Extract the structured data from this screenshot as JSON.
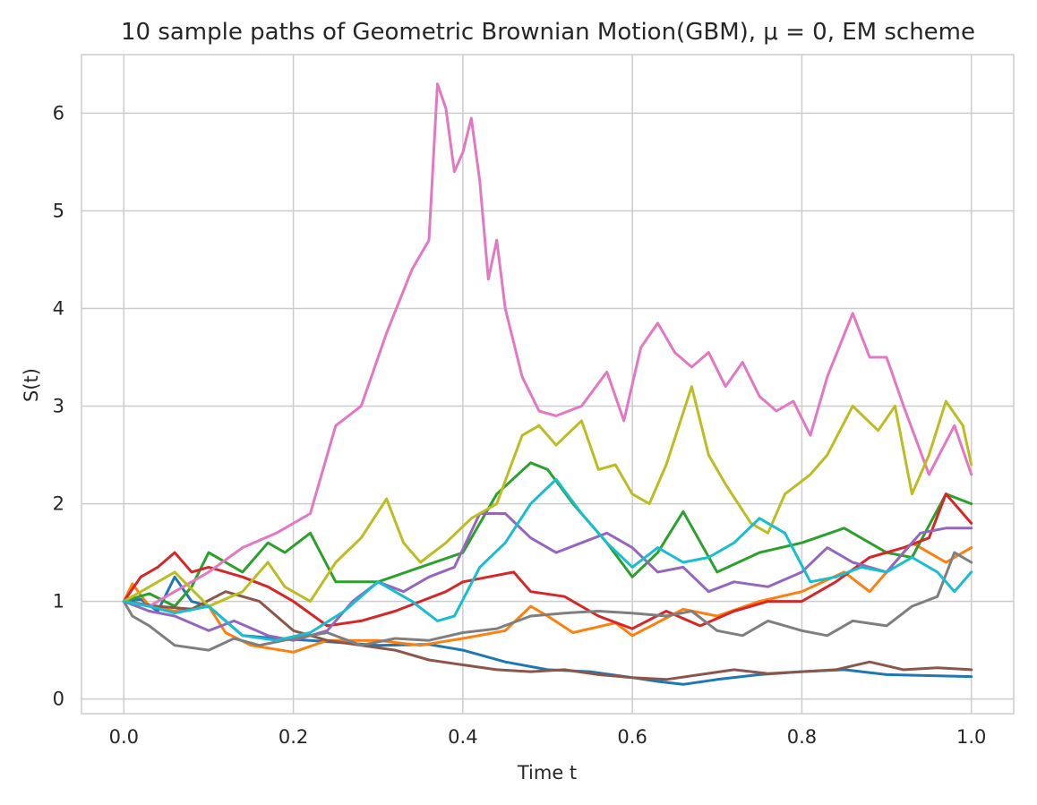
{
  "chart_data": {
    "type": "line",
    "title": "10 sample paths of Geometric Brownian Motion(GBM), μ = 0, EM scheme",
    "xlabel": "Time t",
    "ylabel": "S(t)",
    "xlim": [
      -0.05,
      1.05
    ],
    "ylim": [
      -0.15,
      6.6
    ],
    "grid": true,
    "legend": "none",
    "x_ticks": [
      0.0,
      0.2,
      0.4,
      0.6,
      0.8,
      1.0
    ],
    "x_tick_labels": [
      "0.0",
      "0.2",
      "0.4",
      "0.6",
      "0.8",
      "1.0"
    ],
    "y_ticks": [
      0,
      1,
      2,
      3,
      4,
      5,
      6
    ],
    "y_tick_labels": [
      "0",
      "1",
      "2",
      "3",
      "4",
      "5",
      "6"
    ],
    "series": [
      {
        "color": "#1f77b4",
        "x": [
          0,
          0.02,
          0.04,
          0.06,
          0.08,
          0.1,
          0.14,
          0.18,
          0.22,
          0.3,
          0.36,
          0.4,
          0.45,
          0.5,
          0.55,
          0.6,
          0.63,
          0.66,
          0.7,
          0.75,
          0.8,
          0.85,
          0.9,
          0.95,
          1.0
        ],
        "y": [
          1.0,
          1.02,
          0.9,
          1.25,
          1.0,
          0.95,
          0.65,
          0.62,
          0.6,
          0.55,
          0.56,
          0.5,
          0.38,
          0.3,
          0.28,
          0.22,
          0.18,
          0.15,
          0.2,
          0.25,
          0.28,
          0.3,
          0.25,
          0.24,
          0.23
        ]
      },
      {
        "color": "#ff7f0e",
        "x": [
          0,
          0.01,
          0.03,
          0.06,
          0.1,
          0.12,
          0.15,
          0.2,
          0.24,
          0.3,
          0.35,
          0.4,
          0.45,
          0.48,
          0.5,
          0.53,
          0.58,
          0.6,
          0.66,
          0.7,
          0.75,
          0.8,
          0.85,
          0.88,
          0.93,
          0.97,
          1.0
        ],
        "y": [
          1.0,
          1.18,
          0.95,
          0.9,
          0.95,
          0.68,
          0.55,
          0.48,
          0.6,
          0.6,
          0.55,
          0.62,
          0.7,
          0.95,
          0.85,
          0.68,
          0.78,
          0.65,
          0.92,
          0.85,
          1.0,
          1.1,
          1.3,
          1.1,
          1.6,
          1.4,
          1.55
        ]
      },
      {
        "color": "#2ca02c",
        "x": [
          0,
          0.03,
          0.06,
          0.08,
          0.1,
          0.14,
          0.17,
          0.19,
          0.22,
          0.25,
          0.3,
          0.35,
          0.4,
          0.44,
          0.48,
          0.5,
          0.53,
          0.57,
          0.6,
          0.63,
          0.66,
          0.7,
          0.75,
          0.8,
          0.85,
          0.9,
          0.93,
          0.97,
          1.0
        ],
        "y": [
          1.0,
          1.08,
          0.95,
          1.15,
          1.5,
          1.3,
          1.6,
          1.5,
          1.7,
          1.2,
          1.2,
          1.35,
          1.5,
          2.1,
          2.42,
          2.35,
          2.0,
          1.6,
          1.25,
          1.5,
          1.92,
          1.3,
          1.5,
          1.6,
          1.75,
          1.5,
          1.45,
          2.1,
          2.0
        ]
      },
      {
        "color": "#d62728",
        "x": [
          0,
          0.02,
          0.04,
          0.06,
          0.08,
          0.1,
          0.14,
          0.17,
          0.2,
          0.24,
          0.28,
          0.32,
          0.35,
          0.38,
          0.4,
          0.43,
          0.46,
          0.48,
          0.52,
          0.56,
          0.6,
          0.64,
          0.68,
          0.72,
          0.76,
          0.8,
          0.84,
          0.88,
          0.92,
          0.95,
          0.97,
          1.0
        ],
        "y": [
          1.0,
          1.25,
          1.35,
          1.5,
          1.3,
          1.35,
          1.25,
          1.15,
          1.0,
          0.75,
          0.8,
          0.9,
          1.0,
          1.1,
          1.2,
          1.25,
          1.3,
          1.1,
          1.05,
          0.85,
          0.72,
          0.9,
          0.75,
          0.9,
          1.0,
          1.0,
          1.2,
          1.45,
          1.55,
          1.65,
          2.1,
          1.8
        ]
      },
      {
        "color": "#9467bd",
        "x": [
          0,
          0.03,
          0.06,
          0.1,
          0.13,
          0.17,
          0.2,
          0.24,
          0.27,
          0.3,
          0.33,
          0.36,
          0.39,
          0.42,
          0.45,
          0.48,
          0.51,
          0.54,
          0.57,
          0.6,
          0.63,
          0.66,
          0.69,
          0.72,
          0.76,
          0.8,
          0.83,
          0.86,
          0.9,
          0.94,
          0.97,
          1.0
        ],
        "y": [
          1.0,
          0.9,
          0.85,
          0.7,
          0.8,
          0.65,
          0.6,
          0.7,
          1.0,
          1.2,
          1.1,
          1.25,
          1.35,
          1.9,
          1.9,
          1.65,
          1.5,
          1.6,
          1.7,
          1.55,
          1.3,
          1.35,
          1.1,
          1.2,
          1.15,
          1.3,
          1.55,
          1.4,
          1.3,
          1.7,
          1.75,
          1.75
        ]
      },
      {
        "color": "#8c564b",
        "x": [
          0,
          0.04,
          0.08,
          0.12,
          0.16,
          0.2,
          0.24,
          0.28,
          0.32,
          0.36,
          0.4,
          0.44,
          0.48,
          0.52,
          0.56,
          0.6,
          0.64,
          0.68,
          0.72,
          0.76,
          0.8,
          0.84,
          0.88,
          0.92,
          0.96,
          1.0
        ],
        "y": [
          1.0,
          0.95,
          0.92,
          1.1,
          1.0,
          0.7,
          0.6,
          0.55,
          0.5,
          0.4,
          0.35,
          0.3,
          0.28,
          0.3,
          0.25,
          0.22,
          0.2,
          0.25,
          0.3,
          0.26,
          0.28,
          0.3,
          0.38,
          0.3,
          0.32,
          0.3
        ]
      },
      {
        "color": "#e377c2",
        "x": [
          0,
          0.03,
          0.06,
          0.1,
          0.14,
          0.18,
          0.22,
          0.25,
          0.28,
          0.31,
          0.34,
          0.36,
          0.37,
          0.38,
          0.39,
          0.4,
          0.41,
          0.42,
          0.43,
          0.44,
          0.45,
          0.47,
          0.49,
          0.51,
          0.54,
          0.57,
          0.59,
          0.61,
          0.63,
          0.65,
          0.67,
          0.69,
          0.71,
          0.73,
          0.75,
          0.77,
          0.79,
          0.81,
          0.83,
          0.86,
          0.88,
          0.9,
          0.92,
          0.95,
          0.98,
          1.0
        ],
        "y": [
          1.0,
          0.95,
          1.1,
          1.3,
          1.55,
          1.7,
          1.9,
          2.8,
          3.0,
          3.75,
          4.4,
          4.7,
          6.3,
          6.05,
          5.4,
          5.6,
          5.95,
          5.3,
          4.3,
          4.7,
          4.0,
          3.3,
          2.95,
          2.9,
          3.0,
          3.35,
          2.85,
          3.6,
          3.85,
          3.55,
          3.4,
          3.55,
          3.2,
          3.45,
          3.1,
          2.95,
          3.05,
          2.7,
          3.3,
          3.95,
          3.5,
          3.5,
          3.0,
          2.3,
          2.8,
          2.3
        ]
      },
      {
        "color": "#7f7f7f",
        "x": [
          0,
          0.01,
          0.03,
          0.06,
          0.1,
          0.13,
          0.16,
          0.2,
          0.24,
          0.28,
          0.32,
          0.36,
          0.4,
          0.44,
          0.48,
          0.52,
          0.56,
          0.6,
          0.64,
          0.67,
          0.7,
          0.73,
          0.76,
          0.8,
          0.83,
          0.86,
          0.9,
          0.93,
          0.96,
          0.98,
          1.0
        ],
        "y": [
          1.0,
          0.85,
          0.75,
          0.55,
          0.5,
          0.62,
          0.55,
          0.62,
          0.68,
          0.55,
          0.62,
          0.6,
          0.68,
          0.72,
          0.85,
          0.88,
          0.9,
          0.88,
          0.85,
          0.9,
          0.7,
          0.65,
          0.8,
          0.7,
          0.65,
          0.8,
          0.75,
          0.95,
          1.05,
          1.5,
          1.4
        ]
      },
      {
        "color": "#bcbd22",
        "x": [
          0,
          0.03,
          0.06,
          0.1,
          0.14,
          0.17,
          0.19,
          0.22,
          0.25,
          0.28,
          0.31,
          0.33,
          0.35,
          0.38,
          0.41,
          0.44,
          0.47,
          0.49,
          0.51,
          0.54,
          0.56,
          0.58,
          0.6,
          0.62,
          0.64,
          0.67,
          0.69,
          0.71,
          0.74,
          0.76,
          0.78,
          0.81,
          0.83,
          0.86,
          0.89,
          0.91,
          0.93,
          0.95,
          0.97,
          0.99,
          1.0
        ],
        "y": [
          1.0,
          1.15,
          1.3,
          0.95,
          1.1,
          1.4,
          1.15,
          1.0,
          1.4,
          1.65,
          2.05,
          1.6,
          1.4,
          1.6,
          1.85,
          2.0,
          2.7,
          2.8,
          2.6,
          2.85,
          2.35,
          2.4,
          2.1,
          2.0,
          2.4,
          3.2,
          2.5,
          2.2,
          1.8,
          1.7,
          2.1,
          2.3,
          2.5,
          3.0,
          2.75,
          3.0,
          2.1,
          2.5,
          3.05,
          2.8,
          2.4
        ]
      },
      {
        "color": "#17becf",
        "x": [
          0,
          0.03,
          0.06,
          0.1,
          0.14,
          0.18,
          0.22,
          0.26,
          0.3,
          0.34,
          0.37,
          0.39,
          0.42,
          0.45,
          0.48,
          0.51,
          0.54,
          0.57,
          0.6,
          0.63,
          0.66,
          0.69,
          0.72,
          0.75,
          0.78,
          0.81,
          0.84,
          0.87,
          0.9,
          0.93,
          0.96,
          0.98,
          1.0
        ],
        "y": [
          1.0,
          0.95,
          0.88,
          0.95,
          0.65,
          0.6,
          0.68,
          0.9,
          1.2,
          1.0,
          0.8,
          0.85,
          1.35,
          1.6,
          2.0,
          2.25,
          1.9,
          1.6,
          1.35,
          1.55,
          1.4,
          1.45,
          1.6,
          1.85,
          1.7,
          1.2,
          1.25,
          1.35,
          1.3,
          1.45,
          1.3,
          1.1,
          1.3
        ]
      }
    ]
  }
}
